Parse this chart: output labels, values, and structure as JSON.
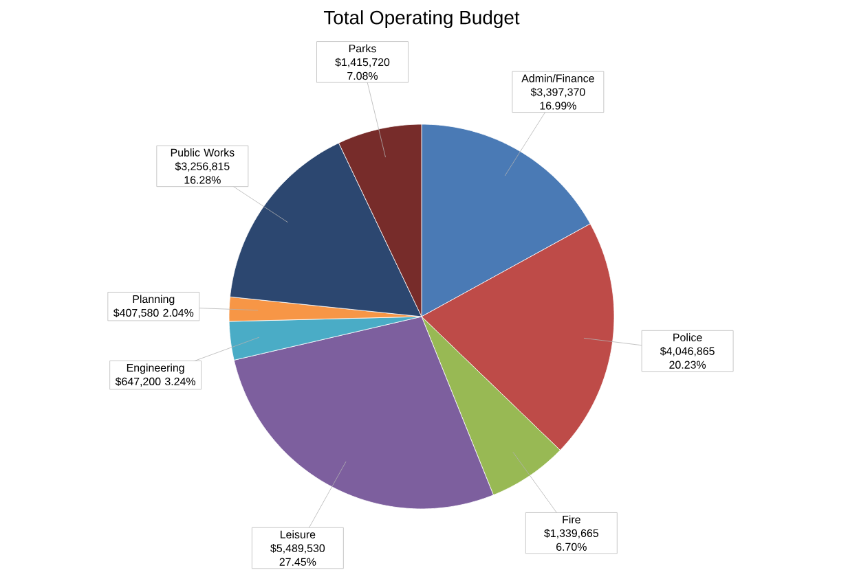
{
  "chart_data": {
    "type": "pie",
    "title": "Total Operating Budget",
    "categories": [
      "Admin/Finance",
      "Police",
      "Fire",
      "Leisure",
      "Engineering",
      "Planning",
      "Public Works",
      "Parks"
    ],
    "values": [
      3397370,
      4046865,
      1339665,
      5489530,
      647200,
      407580,
      3256815,
      1415720
    ],
    "colors": [
      "#4a7ab5",
      "#be4b48",
      "#98b954",
      "#7d5f9e",
      "#4aacc6",
      "#f79646",
      "#2c4770",
      "#772c2a"
    ],
    "value_labels": [
      "$3,397,370 16.99%",
      "$4,046,865 20.23%",
      "$1,339,665 6.70%",
      "$5,489,530 27.45%",
      "$647,200 3.24%",
      "$407,580 2.04%",
      "$3,256,815 16.28%",
      "$1,415,720 7.08%"
    ]
  }
}
